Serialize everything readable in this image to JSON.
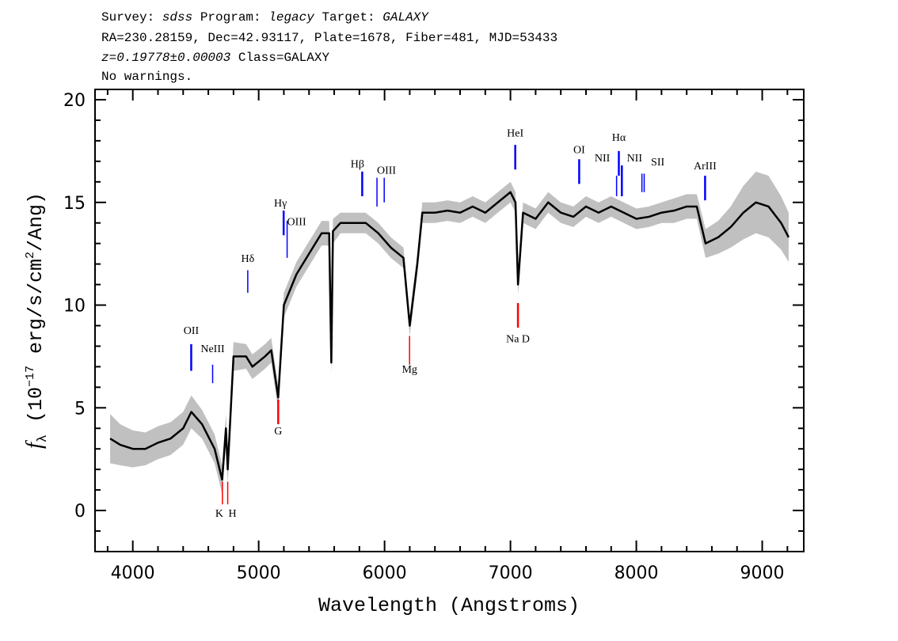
{
  "header": {
    "line1": {
      "a": "Survey: ",
      "survey": "sdss",
      "b": " Program: ",
      "program": "legacy",
      "c": " Target: ",
      "target": "GALAXY"
    },
    "line2": "RA=230.28159, Dec=42.93117, Plate=1678, Fiber=481, MJD=53433",
    "line3": {
      "z": "z=0.19778±0.00003",
      "cls": " Class=GALAXY"
    },
    "line4": "No warnings."
  },
  "chart_data": {
    "type": "line",
    "title": "",
    "xlabel": "Wavelength (Angstroms)",
    "ylabel": "f_λ (10^-17 erg/s/cm^2/Ang)",
    "ylabel_parts": {
      "f": "f",
      "sub": "λ",
      "a": " (10",
      "exp": "−17",
      "b": " erg/s/cm",
      "exp2": "2",
      "c": "/Ang)"
    },
    "xlim": [
      3700,
      9330
    ],
    "ylim": [
      -2,
      20.5
    ],
    "xticks": [
      4000,
      5000,
      6000,
      7000,
      8000,
      9000
    ],
    "yticks": [
      0,
      5,
      10,
      15,
      20
    ],
    "redshift": 0.19778,
    "colors": {
      "flux": "#000000",
      "error": "#c0c0c0",
      "emission": "#0000ff",
      "absorption": "#ff0000"
    },
    "spectrum": {
      "wavelength": [
        3820,
        3900,
        4000,
        4100,
        4200,
        4300,
        4400,
        4465,
        4550,
        4650,
        4710,
        4740,
        4754,
        4800,
        4900,
        4950,
        5050,
        5100,
        5155,
        5200,
        5300,
        5400,
        5500,
        5560,
        5577,
        5590,
        5650,
        5750,
        5850,
        5950,
        6050,
        6150,
        6200,
        6260,
        6300,
        6400,
        6500,
        6600,
        6700,
        6800,
        6900,
        7000,
        7040,
        7060,
        7100,
        7200,
        7300,
        7400,
        7500,
        7600,
        7700,
        7800,
        7900,
        8000,
        8100,
        8200,
        8300,
        8400,
        8480,
        8550,
        8650,
        8750,
        8850,
        8950,
        9050,
        9150,
        9210
      ],
      "flux": [
        3.5,
        3.2,
        3.0,
        3.0,
        3.3,
        3.5,
        4.0,
        4.8,
        4.2,
        3.0,
        1.5,
        4.0,
        2.0,
        7.5,
        7.5,
        7.0,
        7.5,
        7.8,
        5.5,
        10.0,
        11.5,
        12.5,
        13.5,
        13.5,
        7.2,
        13.6,
        14.0,
        14.0,
        14.0,
        13.5,
        12.8,
        12.3,
        9.0,
        12.0,
        14.5,
        14.5,
        14.6,
        14.5,
        14.8,
        14.5,
        15.0,
        15.5,
        15.0,
        11.0,
        14.5,
        14.2,
        15.0,
        14.5,
        14.3,
        14.8,
        14.5,
        14.8,
        14.5,
        14.2,
        14.3,
        14.5,
        14.6,
        14.8,
        14.8,
        13.0,
        13.3,
        13.8,
        14.5,
        15.0,
        14.8,
        14.0,
        13.3
      ],
      "error": [
        1.2,
        1.0,
        0.9,
        0.8,
        0.8,
        0.8,
        0.8,
        0.8,
        0.7,
        0.7,
        0.7,
        0.7,
        0.7,
        0.7,
        0.6,
        0.6,
        0.6,
        0.6,
        0.6,
        0.6,
        0.6,
        0.6,
        0.6,
        0.6,
        0.6,
        0.6,
        0.5,
        0.5,
        0.5,
        0.5,
        0.5,
        0.5,
        0.5,
        0.5,
        0.5,
        0.5,
        0.5,
        0.5,
        0.5,
        0.5,
        0.5,
        0.5,
        0.5,
        0.5,
        0.5,
        0.5,
        0.5,
        0.5,
        0.5,
        0.5,
        0.5,
        0.5,
        0.5,
        0.5,
        0.5,
        0.5,
        0.6,
        0.6,
        0.6,
        0.7,
        0.8,
        1.0,
        1.3,
        1.5,
        1.5,
        1.3,
        1.2
      ]
    },
    "lines": [
      {
        "label": "OII",
        "rest": 3727,
        "kind": "emission"
      },
      {
        "label": "NeIII",
        "rest": 3869,
        "kind": "emission"
      },
      {
        "label": "K",
        "rest": 3934,
        "kind": "absorption"
      },
      {
        "label": "H",
        "rest": 3969,
        "kind": "absorption"
      },
      {
        "label": "Hδ",
        "rest": 4102,
        "kind": "emission"
      },
      {
        "label": "G",
        "rest": 4304,
        "kind": "absorption"
      },
      {
        "label": "Hγ",
        "rest": 4340,
        "kind": "emission"
      },
      {
        "label": "OIII",
        "rest": 4363,
        "kind": "emission"
      },
      {
        "label": "Hβ",
        "rest": 4861,
        "kind": "emission"
      },
      {
        "label": "OIII",
        "rest": 4959,
        "kind": "emission"
      },
      {
        "label": "",
        "rest": 5007,
        "kind": "emission"
      },
      {
        "label": "Mg",
        "rest": 5175,
        "kind": "absorption"
      },
      {
        "label": "HeI",
        "rest": 5876,
        "kind": "emission"
      },
      {
        "label": "Na D",
        "rest": 5894,
        "kind": "absorption"
      },
      {
        "label": "OI",
        "rest": 6300,
        "kind": "emission"
      },
      {
        "label": "NII",
        "rest": 6548,
        "kind": "emission"
      },
      {
        "label": "Hα",
        "rest": 6563,
        "kind": "emission"
      },
      {
        "label": "NII",
        "rest": 6583,
        "kind": "emission"
      },
      {
        "label": "SII",
        "rest": 6716,
        "kind": "emission"
      },
      {
        "label": "",
        "rest": 6731,
        "kind": "emission"
      },
      {
        "label": "ArIII",
        "rest": 7135,
        "kind": "emission"
      }
    ]
  }
}
